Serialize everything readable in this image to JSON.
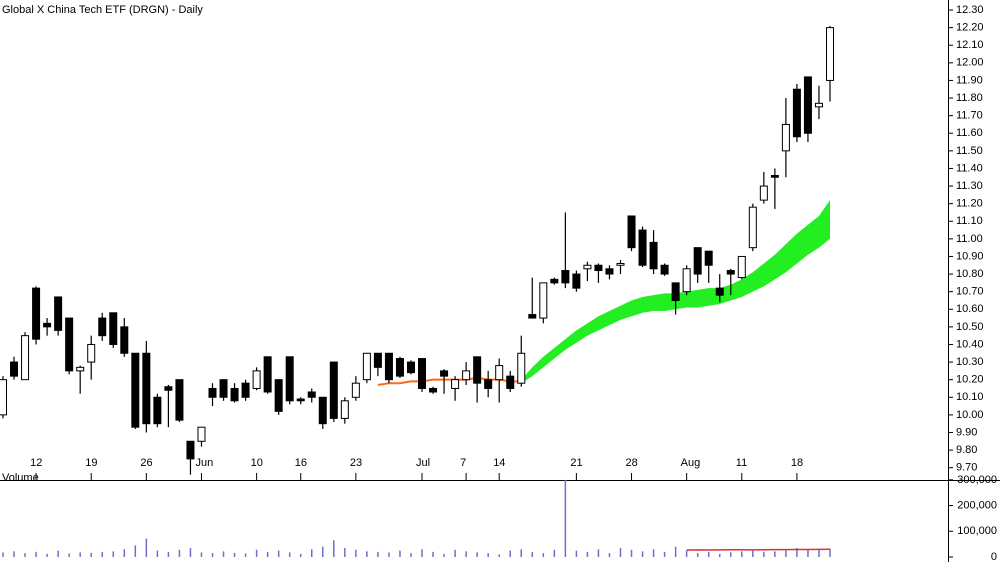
{
  "chart_data": [
    {
      "type": "candlestick",
      "title": "Global X China Tech ETF (DRGN) - Daily",
      "categories": [
        null,
        null,
        null,
        "12",
        null,
        null,
        null,
        null,
        "19",
        null,
        null,
        null,
        null,
        "26",
        null,
        null,
        null,
        null,
        "Jun",
        null,
        null,
        null,
        null,
        "10",
        null,
        null,
        null,
        "16",
        null,
        null,
        null,
        null,
        "23",
        null,
        null,
        null,
        null,
        null,
        "Jul",
        null,
        null,
        null,
        "7",
        null,
        null,
        "14",
        null,
        null,
        null,
        null,
        null,
        null,
        "21",
        null,
        null,
        null,
        null,
        "28",
        null,
        null,
        null,
        null,
        "Aug",
        null,
        null,
        null,
        null,
        "11",
        null,
        null,
        null,
        null,
        "18",
        null,
        null,
        null
      ],
      "open": [
        10.0,
        10.3,
        10.2,
        10.72,
        10.52,
        10.67,
        10.55,
        10.25,
        10.3,
        10.55,
        10.58,
        10.5,
        10.35,
        10.35,
        10.1,
        10.16,
        10.2,
        9.85,
        9.85,
        10.15,
        10.2,
        10.15,
        10.18,
        10.15,
        10.33,
        10.2,
        10.33,
        10.09,
        10.13,
        10.1,
        10.3,
        9.98,
        10.1,
        10.2,
        10.35,
        10.35,
        10.32,
        10.3,
        10.32,
        10.15,
        10.25,
        10.15,
        10.2,
        10.33,
        10.2,
        10.2,
        10.22,
        10.18,
        10.57,
        10.55,
        10.77,
        10.82,
        10.8,
        10.83,
        10.85,
        10.83,
        10.85,
        11.13,
        11.05,
        10.98,
        10.85,
        10.75,
        10.7,
        10.95,
        10.93,
        10.72,
        10.82,
        10.78,
        10.95,
        11.22,
        11.36,
        11.5,
        11.85,
        11.92,
        11.75,
        11.9
      ],
      "high": [
        10.22,
        10.33,
        10.47,
        10.73,
        10.55,
        10.67,
        10.55,
        10.28,
        10.45,
        10.58,
        10.58,
        10.55,
        10.35,
        10.42,
        10.12,
        10.17,
        10.2,
        9.85,
        9.93,
        10.18,
        10.2,
        10.18,
        10.2,
        10.27,
        10.33,
        10.2,
        10.33,
        10.1,
        10.15,
        10.1,
        10.3,
        10.1,
        10.22,
        10.35,
        10.35,
        10.35,
        10.33,
        10.31,
        10.32,
        10.16,
        10.26,
        10.22,
        10.3,
        10.33,
        10.25,
        10.32,
        10.25,
        10.45,
        10.78,
        10.75,
        10.78,
        11.15,
        10.82,
        10.87,
        10.86,
        10.85,
        10.88,
        11.13,
        11.07,
        11.05,
        10.86,
        10.75,
        10.85,
        10.95,
        10.93,
        10.8,
        10.83,
        10.9,
        11.2,
        11.38,
        11.4,
        11.8,
        11.88,
        11.92,
        11.87,
        12.21
      ],
      "low": [
        9.98,
        10.2,
        10.2,
        10.4,
        10.45,
        10.45,
        10.23,
        10.12,
        10.2,
        10.42,
        10.38,
        10.33,
        9.92,
        9.9,
        9.93,
        9.93,
        9.96,
        9.66,
        9.82,
        10.05,
        10.08,
        10.07,
        10.08,
        10.14,
        10.12,
        10.0,
        10.06,
        10.06,
        10.07,
        9.92,
        9.96,
        9.95,
        10.08,
        10.18,
        10.22,
        10.18,
        10.21,
        10.23,
        10.13,
        10.12,
        10.12,
        10.08,
        10.17,
        10.07,
        10.1,
        10.07,
        10.13,
        10.16,
        10.55,
        10.52,
        10.74,
        10.72,
        10.7,
        10.76,
        10.75,
        10.77,
        10.8,
        10.93,
        10.84,
        10.8,
        10.79,
        10.57,
        10.68,
        10.75,
        10.75,
        10.64,
        10.68,
        10.77,
        10.93,
        11.2,
        11.17,
        11.35,
        11.55,
        11.55,
        11.68,
        11.78
      ],
      "close": [
        10.2,
        10.22,
        10.45,
        10.43,
        10.5,
        10.48,
        10.25,
        10.27,
        10.4,
        10.45,
        10.4,
        10.35,
        9.93,
        9.95,
        9.95,
        10.14,
        9.97,
        9.75,
        9.93,
        10.1,
        10.1,
        10.08,
        10.1,
        10.25,
        10.13,
        10.02,
        10.08,
        10.08,
        10.1,
        9.95,
        9.98,
        10.08,
        10.18,
        10.35,
        10.27,
        10.2,
        10.22,
        10.24,
        10.15,
        10.13,
        10.22,
        10.2,
        10.25,
        10.18,
        10.15,
        10.28,
        10.15,
        10.35,
        10.55,
        10.75,
        10.75,
        10.75,
        10.72,
        10.85,
        10.82,
        10.8,
        10.86,
        10.95,
        10.85,
        10.83,
        10.8,
        10.65,
        10.83,
        10.8,
        10.85,
        10.68,
        10.8,
        10.9,
        11.18,
        11.3,
        11.35,
        11.65,
        11.58,
        11.6,
        11.77,
        12.2
      ],
      "ma": [
        null,
        null,
        null,
        null,
        null,
        null,
        null,
        null,
        null,
        null,
        null,
        null,
        null,
        null,
        null,
        null,
        null,
        null,
        null,
        null,
        null,
        null,
        null,
        null,
        null,
        null,
        null,
        null,
        null,
        null,
        null,
        null,
        null,
        null,
        10.17,
        10.18,
        10.18,
        10.19,
        10.19,
        10.2,
        10.2,
        10.2,
        10.2,
        10.21,
        10.2,
        10.2,
        10.19,
        10.19,
        null,
        null,
        null,
        null,
        null,
        null,
        null,
        null,
        null,
        null,
        null,
        null,
        null,
        null,
        null,
        null,
        null,
        null,
        null,
        null,
        null,
        null,
        null,
        null,
        null,
        null,
        null,
        null
      ],
      "band_upper": [
        null,
        null,
        null,
        null,
        null,
        null,
        null,
        null,
        null,
        null,
        null,
        null,
        null,
        null,
        null,
        null,
        null,
        null,
        null,
        null,
        null,
        null,
        null,
        null,
        null,
        null,
        null,
        null,
        null,
        null,
        null,
        null,
        null,
        null,
        null,
        null,
        null,
        null,
        null,
        null,
        null,
        null,
        null,
        null,
        null,
        null,
        null,
        10.2,
        10.27,
        10.33,
        10.38,
        10.43,
        10.48,
        10.52,
        10.56,
        10.59,
        10.62,
        10.65,
        10.67,
        10.68,
        10.69,
        10.69,
        10.7,
        10.71,
        10.72,
        10.72,
        10.74,
        10.77,
        10.81,
        10.86,
        10.91,
        10.97,
        11.03,
        11.08,
        11.13,
        11.22
      ],
      "band_lower": [
        null,
        null,
        null,
        null,
        null,
        null,
        null,
        null,
        null,
        null,
        null,
        null,
        null,
        null,
        null,
        null,
        null,
        null,
        null,
        null,
        null,
        null,
        null,
        null,
        null,
        null,
        null,
        null,
        null,
        null,
        null,
        null,
        null,
        null,
        null,
        null,
        null,
        null,
        null,
        null,
        null,
        null,
        null,
        null,
        null,
        null,
        null,
        10.18,
        10.22,
        10.27,
        10.32,
        10.37,
        10.41,
        10.45,
        10.48,
        10.51,
        10.54,
        10.56,
        10.58,
        10.59,
        10.59,
        10.6,
        10.61,
        10.61,
        10.62,
        10.63,
        10.65,
        10.67,
        10.7,
        10.73,
        10.77,
        10.81,
        10.86,
        10.91,
        10.95,
        11.0
      ],
      "up_color": "#ffffff",
      "down_color": "#000000",
      "ma_color": "#ff6a1a",
      "band_color": "#22ee22",
      "ylim": [
        9.63,
        12.357
      ],
      "yticks": [
        {
          "value": 9.7,
          "label": "9.70"
        },
        {
          "value": 9.8,
          "label": "9.80"
        },
        {
          "value": 9.9,
          "label": "9.90"
        },
        {
          "value": 10.0,
          "label": "10.00"
        },
        {
          "value": 10.1,
          "label": "10.10"
        },
        {
          "value": 10.2,
          "label": "10.20"
        },
        {
          "value": 10.3,
          "label": "10.30"
        },
        {
          "value": 10.4,
          "label": "10.40"
        },
        {
          "value": 10.5,
          "label": "10.50"
        },
        {
          "value": 10.6,
          "label": "10.60"
        },
        {
          "value": 10.7,
          "label": "10.70"
        },
        {
          "value": 10.8,
          "label": "10.80"
        },
        {
          "value": 10.9,
          "label": "10.90"
        },
        {
          "value": 11.0,
          "label": "11.00"
        },
        {
          "value": 11.1,
          "label": "11.10"
        },
        {
          "value": 11.2,
          "label": "11.20"
        },
        {
          "value": 11.3,
          "label": "11.30"
        },
        {
          "value": 11.4,
          "label": "11.40"
        },
        {
          "value": 11.5,
          "label": "11.50"
        },
        {
          "value": 11.6,
          "label": "11.60"
        },
        {
          "value": 11.7,
          "label": "11.70"
        },
        {
          "value": 11.8,
          "label": "11.80"
        },
        {
          "value": 11.9,
          "label": "11.90"
        },
        {
          "value": 12.0,
          "label": "12.00"
        },
        {
          "value": 12.1,
          "label": "12.10"
        },
        {
          "value": 12.2,
          "label": "12.20"
        },
        {
          "value": 12.3,
          "label": "12.30"
        }
      ]
    },
    {
      "type": "bar",
      "title": "Volume",
      "values": [
        18000,
        22000,
        15000,
        20000,
        12000,
        25000,
        14000,
        18000,
        16000,
        20000,
        22000,
        30000,
        45000,
        72000,
        25000,
        20000,
        28000,
        35000,
        18000,
        15000,
        22000,
        16000,
        14000,
        28000,
        20000,
        25000,
        18000,
        12000,
        30000,
        40000,
        65000,
        35000,
        28000,
        22000,
        20000,
        18000,
        25000,
        15000,
        30000,
        20000,
        12000,
        28000,
        22000,
        18000,
        15000,
        10000,
        25000,
        30000,
        20000,
        15000,
        28000,
        300000,
        25000,
        20000,
        30000,
        15000,
        35000,
        28000,
        22000,
        30000,
        20000,
        40000,
        25000,
        15000,
        20000,
        12000,
        18000,
        22000,
        25000,
        20000,
        22000,
        25000,
        35000,
        28000,
        30000,
        32000
      ],
      "ma": [
        null,
        null,
        null,
        null,
        null,
        null,
        null,
        null,
        null,
        null,
        null,
        null,
        null,
        null,
        null,
        null,
        null,
        null,
        null,
        null,
        null,
        null,
        null,
        null,
        null,
        null,
        null,
        null,
        null,
        null,
        null,
        null,
        null,
        null,
        null,
        null,
        null,
        null,
        null,
        null,
        null,
        null,
        null,
        null,
        null,
        null,
        null,
        null,
        null,
        null,
        null,
        null,
        null,
        null,
        null,
        null,
        null,
        null,
        null,
        null,
        null,
        null,
        27000,
        27500,
        27000,
        27500,
        28000,
        28000,
        27500,
        28000,
        28500,
        28500,
        29000,
        29000,
        29500,
        30000
      ],
      "color": "#7070c8",
      "ma_color": "#e03030",
      "title_color": "#6a6ab0",
      "ylim": [
        0,
        315000
      ],
      "yticks": [
        0,
        {
          "value": 100000,
          "label": "100,000"
        },
        {
          "value": 200000,
          "label": "200,000"
        },
        {
          "value": 300000,
          "label": "300,000"
        }
      ]
    }
  ]
}
